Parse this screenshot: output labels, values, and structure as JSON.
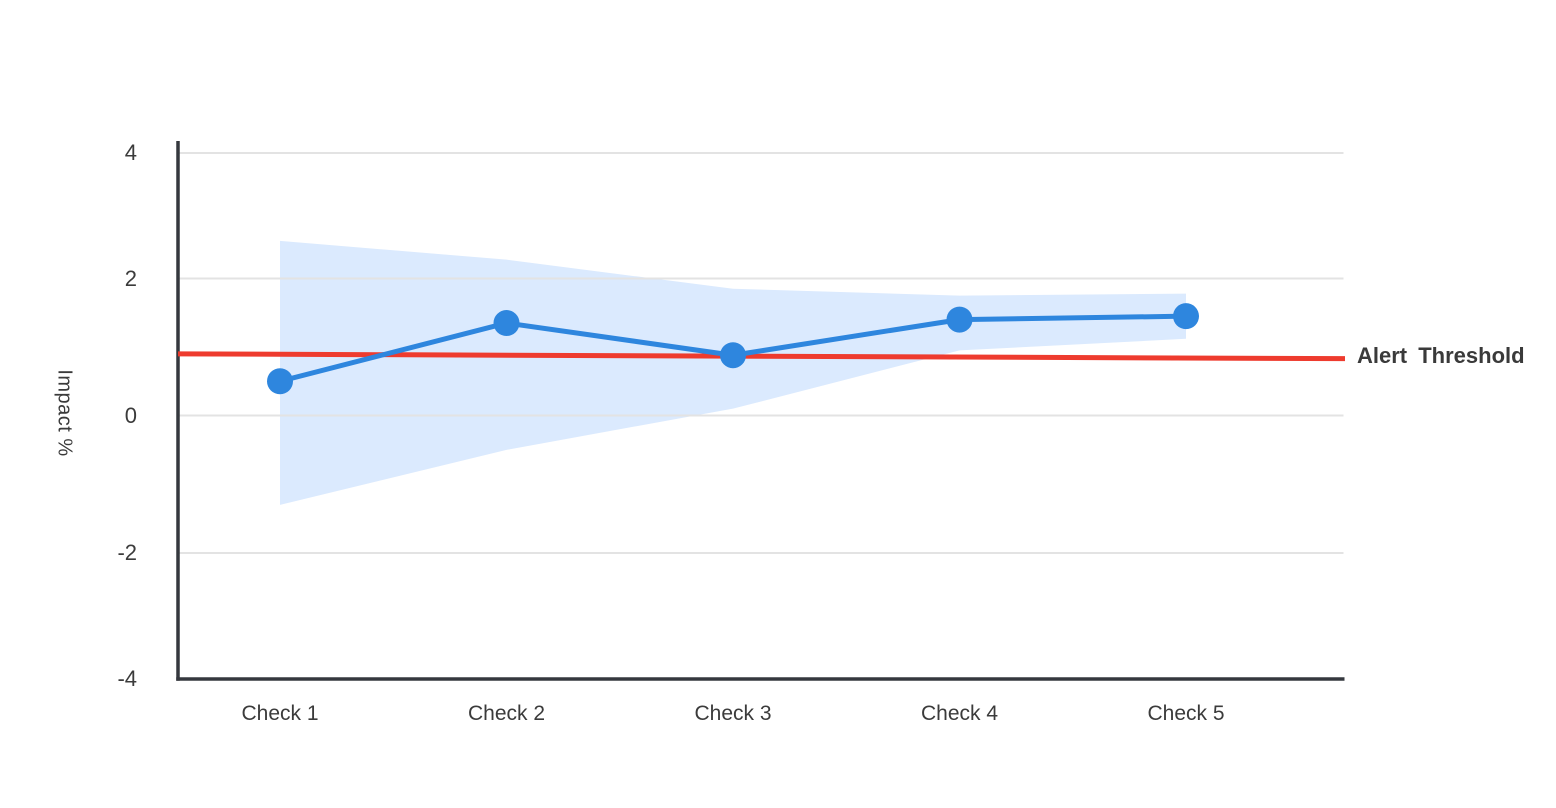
{
  "chart_data": {
    "type": "line",
    "title": "",
    "categories": [
      "Check 1",
      "Check 2",
      "Check 3",
      "Check 4",
      "Check 5"
    ],
    "series": [
      {
        "name": "Impact",
        "type": "line-with-markers",
        "values": [
          0.5,
          1.35,
          0.88,
          1.4,
          1.45
        ]
      },
      {
        "name": "Confidence band",
        "type": "area-band",
        "upper": [
          2.6,
          2.3,
          1.85,
          1.75,
          1.78
        ],
        "lower": [
          -1.3,
          -0.5,
          0.1,
          0.95,
          1.12
        ]
      }
    ],
    "threshold": {
      "label": "Alert Threshold",
      "start_value": 0.9,
      "end_value": 0.83
    },
    "xlabel": "",
    "ylabel": "Impact %",
    "ylim": [
      -4,
      4
    ],
    "yticks": [
      "4",
      "2",
      "0",
      "-2",
      "-4"
    ],
    "ytick_values": [
      4,
      2,
      0,
      -2,
      -4
    ],
    "grid": "horizontal",
    "legend": "none"
  },
  "colors": {
    "line": "#2E86DE",
    "marker": "#2E86DE",
    "band": "#DBEAFE",
    "threshold": "#EE3B2E",
    "axis": "#35383E",
    "grid": "#E3E3E3",
    "text": "#3A3A3A"
  }
}
